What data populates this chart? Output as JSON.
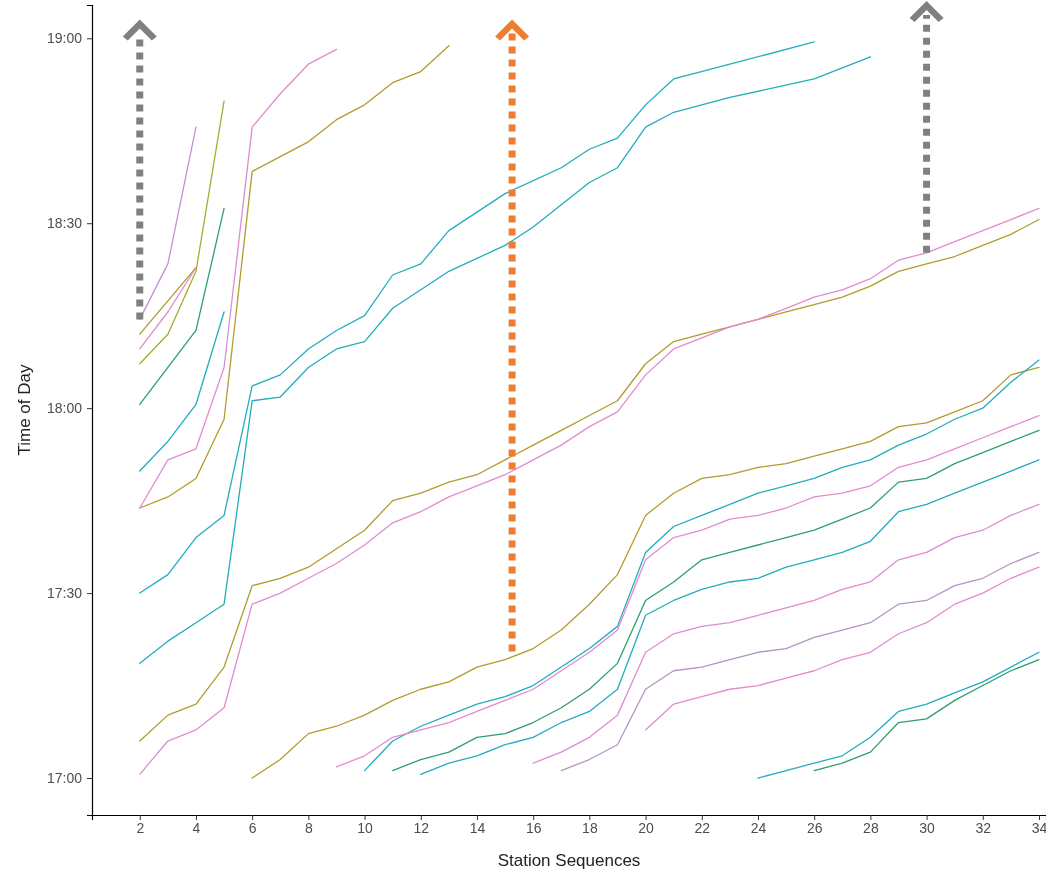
{
  "chart_data": {
    "type": "line",
    "xlabel": "Station Sequences",
    "ylabel": "Time of Day",
    "xlim": [
      0.3,
      34.25
    ],
    "ylim": [
      16.9,
      19.09
    ],
    "xticks": [
      2,
      4,
      6,
      8,
      10,
      12,
      14,
      16,
      18,
      20,
      22,
      24,
      26,
      28,
      30,
      32,
      34
    ],
    "yticks": [
      {
        "value": 17,
        "label": "17:00"
      },
      {
        "value": 17.5,
        "label": "17:30"
      },
      {
        "value": 18,
        "label": "18:00"
      },
      {
        "value": 18.5,
        "label": "18:30"
      },
      {
        "value": 19,
        "label": "19:00"
      }
    ],
    "series": [
      {
        "color": "#c58fd6",
        "x": [
          2,
          3,
          4
        ],
        "values": [
          18.24,
          18.39,
          18.76
        ]
      },
      {
        "color": "#b39b2c",
        "x": [
          2,
          3,
          4
        ],
        "values": [
          18.2,
          18.29,
          18.38
        ]
      },
      {
        "color": "#e08ccf",
        "x": [
          2,
          3,
          4
        ],
        "values": [
          18.16,
          18.26,
          18.38
        ]
      },
      {
        "color": "#9fb030",
        "x": [
          2,
          3,
          4,
          5
        ],
        "values": [
          18.12,
          18.2,
          18.37,
          18.83
        ]
      },
      {
        "color": "#2e9e6e",
        "x": [
          2,
          3,
          4,
          5
        ],
        "values": [
          18.01,
          18.11,
          18.21,
          18.54
        ]
      },
      {
        "color": "#22adbd",
        "x": [
          2,
          3,
          4,
          5
        ],
        "values": [
          17.83,
          17.91,
          18.01,
          18.26
        ]
      },
      {
        "color": "#e08ccf",
        "x": [
          2,
          3,
          4,
          5,
          6,
          7,
          8,
          9
        ],
        "values": [
          17.73,
          17.86,
          17.89,
          18.11,
          18.76,
          18.85,
          18.93,
          18.97
        ]
      },
      {
        "color": "#b39b2c",
        "x": [
          2,
          3,
          4,
          5,
          6,
          7,
          8,
          9,
          10,
          11,
          12,
          13
        ],
        "values": [
          17.73,
          17.76,
          17.81,
          17.97,
          18.64,
          18.68,
          18.72,
          18.78,
          18.82,
          18.88,
          18.91,
          18.98
        ]
      },
      {
        "color": "#22adbd",
        "x": [
          2,
          3,
          4,
          5,
          6,
          7,
          8,
          9,
          10,
          11,
          12,
          13,
          15,
          17,
          18,
          19,
          20,
          21,
          23,
          26
        ],
        "values": [
          17.5,
          17.55,
          17.65,
          17.71,
          18.06,
          18.09,
          18.16,
          18.21,
          18.25,
          18.36,
          18.39,
          18.48,
          18.58,
          18.65,
          18.7,
          18.73,
          18.82,
          18.89,
          18.93,
          18.99
        ]
      },
      {
        "color": "#22adbd",
        "x": [
          2,
          3,
          4,
          5,
          6,
          7,
          8,
          9,
          10,
          11,
          12,
          13,
          15,
          16,
          17,
          18,
          19,
          20,
          21,
          23,
          26,
          28
        ],
        "values": [
          17.31,
          17.37,
          17.42,
          17.47,
          18.02,
          18.03,
          18.11,
          18.16,
          18.18,
          18.27,
          18.32,
          18.37,
          18.44,
          18.49,
          18.55,
          18.61,
          18.65,
          18.76,
          18.8,
          18.84,
          18.89,
          18.95
        ]
      },
      {
        "color": "#b39b2c",
        "x": [
          2,
          3,
          4,
          5,
          6,
          7,
          8,
          9,
          10,
          11,
          12,
          13,
          14,
          15,
          16,
          17,
          18,
          19,
          20,
          21,
          22,
          23,
          24,
          25,
          26,
          27,
          28,
          29,
          30,
          31,
          32,
          33,
          34
        ],
        "values": [
          17.1,
          17.17,
          17.2,
          17.3,
          17.52,
          17.54,
          17.57,
          17.62,
          17.67,
          17.75,
          17.77,
          17.8,
          17.82,
          17.86,
          17.9,
          17.94,
          17.98,
          18.02,
          18.12,
          18.18,
          18.2,
          18.22,
          18.24,
          18.26,
          18.28,
          18.3,
          18.33,
          18.37,
          18.39,
          18.41,
          18.44,
          18.47,
          18.51
        ]
      },
      {
        "color": "#e08ccf",
        "x": [
          2,
          3,
          4,
          5,
          6,
          7,
          8,
          9,
          10,
          11,
          12,
          13,
          14,
          15,
          16,
          17,
          18,
          19,
          20,
          21,
          22,
          23,
          24,
          25,
          26,
          27,
          28,
          29,
          30,
          31,
          32,
          33,
          34
        ],
        "values": [
          17.01,
          17.1,
          17.13,
          17.19,
          17.47,
          17.5,
          17.54,
          17.58,
          17.63,
          17.69,
          17.72,
          17.76,
          17.79,
          17.82,
          17.86,
          17.9,
          17.95,
          17.99,
          18.09,
          18.16,
          18.19,
          18.22,
          18.24,
          18.27,
          18.3,
          18.32,
          18.35,
          18.4,
          18.42,
          18.45,
          18.48,
          18.51,
          18.54
        ]
      },
      {
        "color": "#b39b2c",
        "x": [
          6,
          7,
          8,
          9,
          10,
          11,
          12,
          13,
          14,
          15,
          16,
          17,
          18,
          19,
          20,
          21,
          22,
          23,
          24,
          25,
          26,
          27,
          28,
          29,
          30,
          31,
          32,
          33,
          34
        ],
        "values": [
          17.0,
          17.05,
          17.12,
          17.14,
          17.17,
          17.21,
          17.24,
          17.26,
          17.3,
          17.32,
          17.35,
          17.4,
          17.47,
          17.55,
          17.71,
          17.77,
          17.81,
          17.82,
          17.84,
          17.85,
          17.87,
          17.89,
          17.91,
          17.95,
          17.96,
          17.99,
          18.02,
          18.09,
          18.11
        ]
      },
      {
        "color": "#22adbd",
        "x": [
          10,
          11,
          12,
          13,
          14,
          15,
          16,
          17,
          18,
          19,
          20,
          21,
          22,
          23,
          24,
          25,
          26,
          27,
          28,
          29,
          30,
          31,
          32,
          33,
          34
        ],
        "values": [
          17.02,
          17.1,
          17.14,
          17.17,
          17.2,
          17.22,
          17.25,
          17.3,
          17.35,
          17.41,
          17.61,
          17.68,
          17.71,
          17.74,
          17.77,
          17.79,
          17.81,
          17.84,
          17.86,
          17.9,
          17.93,
          17.97,
          18.0,
          18.07,
          18.13
        ]
      },
      {
        "color": "#e08ccf",
        "x": [
          9,
          10,
          11,
          12,
          13,
          14,
          15,
          16,
          17,
          18,
          19,
          20,
          21,
          22,
          23,
          24,
          25,
          26,
          27,
          28,
          29,
          30,
          31,
          32,
          33,
          34
        ],
        "values": [
          17.03,
          17.06,
          17.11,
          17.13,
          17.15,
          17.18,
          17.21,
          17.24,
          17.29,
          17.34,
          17.4,
          17.59,
          17.65,
          17.67,
          17.7,
          17.71,
          17.73,
          17.76,
          17.77,
          17.79,
          17.84,
          17.86,
          17.89,
          17.92,
          17.95,
          17.98
        ]
      },
      {
        "color": "#2e9e6e",
        "x": [
          11,
          12,
          13,
          14,
          15,
          16,
          17,
          18,
          19,
          20,
          21,
          22,
          23,
          24,
          25,
          26,
          27,
          28,
          29,
          30,
          31,
          32,
          33,
          34
        ],
        "values": [
          17.02,
          17.05,
          17.07,
          17.11,
          17.12,
          17.15,
          17.19,
          17.24,
          17.31,
          17.48,
          17.53,
          17.59,
          17.61,
          17.63,
          17.65,
          17.67,
          17.7,
          17.73,
          17.8,
          17.81,
          17.85,
          17.88,
          17.91,
          17.94
        ]
      },
      {
        "color": "#22adbd",
        "x": [
          12,
          13,
          14,
          15,
          16,
          17,
          18,
          19,
          20,
          21,
          22,
          23,
          24,
          25,
          26,
          27,
          28,
          29,
          30,
          31,
          32,
          33,
          34
        ],
        "values": [
          17.01,
          17.04,
          17.06,
          17.09,
          17.11,
          17.15,
          17.18,
          17.24,
          17.44,
          17.48,
          17.51,
          17.53,
          17.54,
          17.57,
          17.59,
          17.61,
          17.64,
          17.72,
          17.74,
          17.77,
          17.8,
          17.83,
          17.86
        ]
      },
      {
        "color": "#e08ccf",
        "x": [
          16,
          17,
          18,
          19,
          20,
          21,
          22,
          23,
          24,
          25,
          26,
          27,
          28,
          29,
          30,
          31,
          32,
          33,
          34
        ],
        "values": [
          17.04,
          17.07,
          17.11,
          17.17,
          17.34,
          17.39,
          17.41,
          17.42,
          17.44,
          17.46,
          17.48,
          17.51,
          17.53,
          17.59,
          17.61,
          17.65,
          17.67,
          17.71,
          17.74
        ]
      },
      {
        "color": "#b494c0",
        "x": [
          17,
          18,
          19,
          20,
          21,
          22,
          23,
          24,
          25,
          26,
          27,
          28,
          29,
          30,
          31,
          32,
          33,
          34
        ],
        "values": [
          17.02,
          17.05,
          17.09,
          17.24,
          17.29,
          17.3,
          17.32,
          17.34,
          17.35,
          17.38,
          17.4,
          17.42,
          17.47,
          17.48,
          17.52,
          17.54,
          17.58,
          17.61
        ]
      },
      {
        "color": "#e08ccf",
        "x": [
          20,
          21,
          22,
          23,
          24,
          25,
          26,
          27,
          28,
          29,
          30,
          31,
          32,
          33,
          34
        ],
        "values": [
          17.13,
          17.2,
          17.22,
          17.24,
          17.25,
          17.27,
          17.29,
          17.32,
          17.34,
          17.39,
          17.42,
          17.47,
          17.5,
          17.54,
          17.57
        ]
      },
      {
        "color": "#22adbd",
        "x": [
          24,
          25,
          26,
          27,
          28,
          29,
          30,
          31,
          32,
          33,
          34
        ],
        "values": [
          17.0,
          17.02,
          17.04,
          17.06,
          17.11,
          17.18,
          17.2,
          17.23,
          17.26,
          17.3,
          17.34
        ]
      },
      {
        "color": "#2e9e6e",
        "x": [
          26,
          27,
          28,
          29,
          30,
          31,
          32,
          33,
          34
        ],
        "values": [
          17.02,
          17.04,
          17.07,
          17.15,
          17.16,
          17.21,
          17.25,
          17.29,
          17.32
        ]
      }
    ]
  }
}
